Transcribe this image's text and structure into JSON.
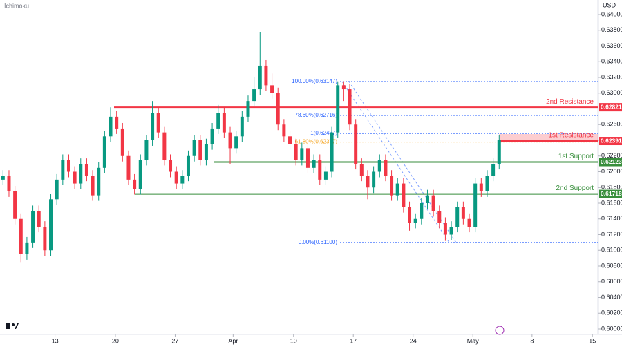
{
  "chart_data": {
    "type": "candlestick",
    "indicator": "Ichimoku",
    "currency": "USD",
    "up_color": "#089981",
    "down_color": "#f23645",
    "xlim": [
      0,
      100
    ],
    "xticks": [
      {
        "value": 9.2,
        "label": "13"
      },
      {
        "value": 19.3,
        "label": "20"
      },
      {
        "value": 29.3,
        "label": "27"
      },
      {
        "value": 39,
        "label": "Apr"
      },
      {
        "value": 49.1,
        "label": "10"
      },
      {
        "value": 59.1,
        "label": "17"
      },
      {
        "value": 69.1,
        "label": "24"
      },
      {
        "value": 79.1,
        "label": "May"
      },
      {
        "value": 89,
        "label": "8"
      },
      {
        "value": 99.1,
        "label": "15"
      }
    ],
    "ylim": [
      0.6,
      0.64
    ],
    "yticks": [
      {
        "value": 0.6,
        "label": "0.60000"
      },
      {
        "value": 0.602,
        "label": "0.60200"
      },
      {
        "value": 0.604,
        "label": "0.60400"
      },
      {
        "value": 0.606,
        "label": "0.60600"
      },
      {
        "value": 0.608,
        "label": "0.60800"
      },
      {
        "value": 0.61,
        "label": "0.61000"
      },
      {
        "value": 0.612,
        "label": "0.61200"
      },
      {
        "value": 0.614,
        "label": "0.61400"
      },
      {
        "value": 0.616,
        "label": "0.61600"
      },
      {
        "value": 0.618,
        "label": "0.61800"
      },
      {
        "value": 0.62,
        "label": "0.62000"
      },
      {
        "value": 0.622,
        "label": "0.62200"
      },
      {
        "value": 0.624,
        "label": "0.62400"
      },
      {
        "value": 0.626,
        "label": "0.62600"
      },
      {
        "value": 0.628,
        "label": "0.62800"
      },
      {
        "value": 0.63,
        "label": "0.63000"
      },
      {
        "value": 0.632,
        "label": "0.63200"
      },
      {
        "value": 0.634,
        "label": "0.63400"
      },
      {
        "value": 0.636,
        "label": "0.63600"
      },
      {
        "value": 0.638,
        "label": "0.63800"
      },
      {
        "value": 0.64,
        "label": "0.64000"
      }
    ],
    "open": [
      0.619,
      0.6195,
      0.6175,
      0.614,
      0.6095,
      0.611,
      0.615,
      0.613,
      0.61,
      0.6165,
      0.619,
      0.6215,
      0.62,
      0.6185,
      0.621,
      0.6195,
      0.617,
      0.6205,
      0.6245,
      0.627,
      0.6255,
      0.622,
      0.619,
      0.6178,
      0.6215,
      0.624,
      0.6275,
      0.625,
      0.6215,
      0.62,
      0.6185,
      0.6195,
      0.622,
      0.624,
      0.6215,
      0.6235,
      0.6255,
      0.6275,
      0.625,
      0.623,
      0.6245,
      0.627,
      0.629,
      0.6305,
      0.6335,
      0.631,
      0.63,
      0.626,
      0.6245,
      0.6235,
      0.6215,
      0.623,
      0.6205,
      0.6215,
      0.619,
      0.62,
      0.625,
      0.631,
      0.6305,
      0.626,
      0.621,
      0.6195,
      0.618,
      0.62,
      0.6215,
      0.6195,
      0.617,
      0.6185,
      0.6155,
      0.6135,
      0.614,
      0.616,
      0.617,
      0.615,
      0.6135,
      0.612,
      0.613,
      0.6155,
      0.614,
      0.613,
      0.6185,
      0.6175,
      0.6195,
      0.621
    ],
    "high": [
      0.6202,
      0.6202,
      0.6182,
      0.6147,
      0.6117,
      0.6157,
      0.6157,
      0.6137,
      0.6172,
      0.6197,
      0.6222,
      0.6222,
      0.6207,
      0.6217,
      0.6217,
      0.6202,
      0.6212,
      0.6252,
      0.6282,
      0.6277,
      0.6262,
      0.6227,
      0.6197,
      0.6222,
      0.6247,
      0.629,
      0.6282,
      0.6257,
      0.6222,
      0.6207,
      0.6202,
      0.6227,
      0.6247,
      0.6247,
      0.6242,
      0.6262,
      0.6285,
      0.6282,
      0.6257,
      0.6252,
      0.6277,
      0.6297,
      0.632,
      0.6378,
      0.6342,
      0.6325,
      0.6307,
      0.6267,
      0.6252,
      0.6242,
      0.6237,
      0.6237,
      0.6222,
      0.6222,
      0.6207,
      0.6257,
      0.6315,
      0.6315,
      0.6312,
      0.6267,
      0.6217,
      0.6202,
      0.6207,
      0.6222,
      0.6222,
      0.6202,
      0.6192,
      0.6192,
      0.6162,
      0.6147,
      0.6167,
      0.6177,
      0.6177,
      0.6157,
      0.6142,
      0.6137,
      0.6162,
      0.6162,
      0.6147,
      0.6192,
      0.6192,
      0.6202,
      0.6217,
      0.6247
    ],
    "low": [
      0.6183,
      0.6168,
      0.6133,
      0.6085,
      0.6088,
      0.6103,
      0.6123,
      0.6093,
      0.6093,
      0.6158,
      0.6183,
      0.6193,
      0.6178,
      0.6178,
      0.6188,
      0.6163,
      0.6163,
      0.6198,
      0.6238,
      0.6248,
      0.6213,
      0.6183,
      0.6171,
      0.6171,
      0.6208,
      0.6233,
      0.6243,
      0.6208,
      0.6193,
      0.6178,
      0.6178,
      0.6188,
      0.6213,
      0.6208,
      0.6208,
      0.6228,
      0.6248,
      0.6243,
      0.621,
      0.6223,
      0.6238,
      0.6263,
      0.6283,
      0.6298,
      0.6303,
      0.6293,
      0.6253,
      0.6238,
      0.6228,
      0.6208,
      0.6208,
      0.6198,
      0.6198,
      0.6183,
      0.6183,
      0.6193,
      0.6243,
      0.629,
      0.6253,
      0.6203,
      0.6188,
      0.6165,
      0.6173,
      0.6193,
      0.6188,
      0.6163,
      0.6163,
      0.6148,
      0.6125,
      0.6128,
      0.6133,
      0.6153,
      0.6143,
      0.6128,
      0.6112,
      0.6113,
      0.6123,
      0.6133,
      0.6123,
      0.6123,
      0.6168,
      0.6168,
      0.6188,
      0.6203
    ],
    "close": [
      0.6195,
      0.6175,
      0.614,
      0.6095,
      0.611,
      0.615,
      0.613,
      0.61,
      0.6165,
      0.619,
      0.6215,
      0.62,
      0.6185,
      0.621,
      0.6195,
      0.617,
      0.6205,
      0.6245,
      0.627,
      0.6255,
      0.622,
      0.619,
      0.6178,
      0.6215,
      0.624,
      0.6275,
      0.625,
      0.6215,
      0.62,
      0.6185,
      0.6195,
      0.622,
      0.624,
      0.6215,
      0.6235,
      0.6255,
      0.6275,
      0.625,
      0.623,
      0.6245,
      0.627,
      0.629,
      0.6305,
      0.6335,
      0.631,
      0.63,
      0.626,
      0.6245,
      0.6235,
      0.6215,
      0.623,
      0.6205,
      0.6215,
      0.619,
      0.62,
      0.625,
      0.631,
      0.6305,
      0.626,
      0.621,
      0.6195,
      0.618,
      0.62,
      0.6215,
      0.6195,
      0.617,
      0.6185,
      0.6155,
      0.6135,
      0.614,
      0.616,
      0.617,
      0.615,
      0.6135,
      0.612,
      0.613,
      0.6155,
      0.614,
      0.613,
      0.6185,
      0.6175,
      0.6195,
      0.621,
      0.624
    ],
    "levels": [
      {
        "name": "2nd Resistance",
        "value": 0.62821,
        "color": "#f23645"
      },
      {
        "name": "1st Resistance",
        "value": 0.62391,
        "color": "#f23645"
      },
      {
        "name": "1st Support",
        "value": 0.62123,
        "color": "#388e3c"
      },
      {
        "name": "2nd Support",
        "value": 0.61718,
        "color": "#388e3c"
      }
    ],
    "fibonacci": [
      {
        "label": "100.00%(0.63147)",
        "value": 0.63147,
        "color": "#2962ff"
      },
      {
        "label": "78.60%(0.62716)",
        "value": 0.62716,
        "color": "#2962ff"
      },
      {
        "label": "1(0.62487)",
        "value": 0.62487,
        "color": "#2962ff"
      },
      {
        "label": "61.80%(0.62377)",
        "value": 0.62377,
        "color": "#f5a623"
      },
      {
        "label": "0.00%(0.61100)",
        "value": 0.611,
        "color": "#2962ff"
      }
    ]
  }
}
